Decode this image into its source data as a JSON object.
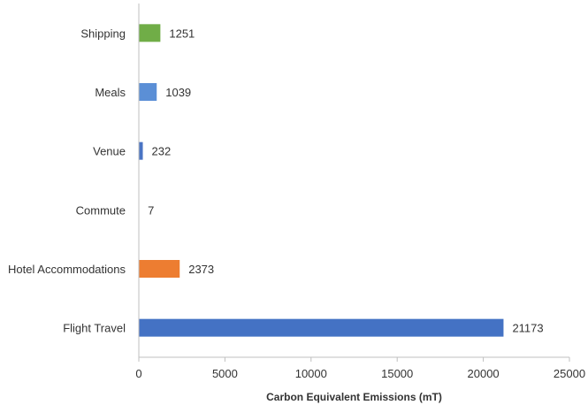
{
  "chart_data": {
    "type": "bar",
    "orientation": "horizontal",
    "categories": [
      "Shipping",
      "Meals",
      "Venue",
      "Commute",
      "Hotel Accommodations",
      "Flight Travel"
    ],
    "values": [
      1251,
      1039,
      232,
      7,
      2373,
      21173
    ],
    "data_labels": [
      "1251",
      "1039",
      "232",
      "7",
      "2373",
      "21173"
    ],
    "colors": [
      "#70ad47",
      "#5b8fd6",
      "#4a74c4",
      "#4472c4",
      "#ed7d31",
      "#4472c4"
    ],
    "xlabel": "Carbon Equivalent Emissions (mT)",
    "ylabel": "",
    "xlim": [
      0,
      25000
    ],
    "xticks": [
      0,
      5000,
      10000,
      15000,
      20000,
      25000
    ],
    "xtick_labels": [
      "0",
      "5000",
      "10000",
      "15000",
      "20000",
      "25000"
    ],
    "grid": false,
    "legend": "none"
  }
}
